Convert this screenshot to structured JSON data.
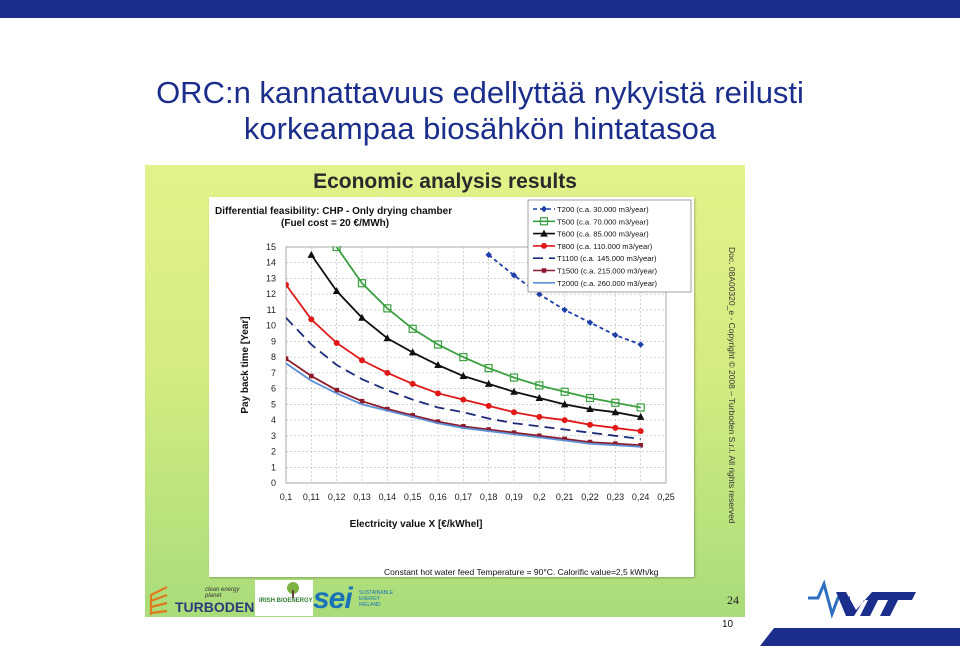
{
  "slide": {
    "title_line1": "ORC:n kannattavuus edellyttää nykyistä reilusti",
    "title_line2": "korkeampaa biosähkön hintatasoa",
    "page_number": "10",
    "brand_color": "#1b2e8c"
  },
  "figure": {
    "heading": "Economic analysis results",
    "side_text": "Doc. 08A00320_e - Copyright © 2008 – Turboden S.r.l. All rights reserved",
    "footnote": "Constant hot water feed Temperature = 90°C. Calorific value=2,5 kWh/kg",
    "page": "24",
    "logos": {
      "turboden": "TURBODEN",
      "turboden_tagline": "clean energy planet",
      "irish": "IRISH BIOENERGY",
      "sei": "sei",
      "sei_tagline": "SUSTAINABLE ENERGY IRELAND"
    }
  },
  "chart_data": {
    "type": "line",
    "title": "Differential feasibility: CHP - Only drying chamber",
    "subtitle": "(Fuel cost = 20 €/MWh)",
    "xlabel": "Electricity value X [€/kWhel]",
    "ylabel": "Pay back time [Year]",
    "xlim": [
      0.1,
      0.25
    ],
    "ylim": [
      0,
      15
    ],
    "xticks": [
      "0,1",
      "0,11",
      "0,12",
      "0,13",
      "0,14",
      "0,15",
      "0,16",
      "0,17",
      "0,18",
      "0,19",
      "0,2",
      "0,21",
      "0,22",
      "0,23",
      "0,24",
      "0,25"
    ],
    "yticks": [
      "0",
      "1",
      "2",
      "3",
      "4",
      "5",
      "6",
      "7",
      "8",
      "9",
      "10",
      "11",
      "12",
      "13",
      "14",
      "15"
    ],
    "grid": true,
    "legend": "top-right",
    "series": [
      {
        "name": "T200 (c.a. 30.000 m3/year)",
        "color": "#1f3fa8",
        "dash": "4,3",
        "marker": "diamond",
        "x": [
          0.18,
          0.19,
          0.2,
          0.21,
          0.22,
          0.23,
          0.24
        ],
        "values": [
          14.5,
          13.2,
          12.0,
          11.0,
          10.2,
          9.4,
          8.8
        ]
      },
      {
        "name": "T500 (c.a. 70.000 m3/year)",
        "color": "#3aa040",
        "dash": "",
        "marker": "square-open",
        "x": [
          0.12,
          0.13,
          0.14,
          0.15,
          0.16,
          0.17,
          0.18,
          0.19,
          0.2,
          0.21,
          0.22,
          0.23,
          0.24
        ],
        "values": [
          15.0,
          12.7,
          11.1,
          9.8,
          8.8,
          8.0,
          7.3,
          6.7,
          6.2,
          5.8,
          5.4,
          5.1,
          4.8
        ]
      },
      {
        "name": "T600 (c.a. 85.000 m3/year)",
        "color": "#111111",
        "dash": "",
        "marker": "triangle",
        "x": [
          0.11,
          0.12,
          0.13,
          0.14,
          0.15,
          0.16,
          0.17,
          0.18,
          0.19,
          0.2,
          0.21,
          0.22,
          0.23,
          0.24
        ],
        "values": [
          14.5,
          12.2,
          10.5,
          9.2,
          8.3,
          7.5,
          6.8,
          6.3,
          5.8,
          5.4,
          5.0,
          4.7,
          4.5,
          4.2
        ]
      },
      {
        "name": "T800 (c.a. 110.000 m3/year)",
        "color": "#e01818",
        "dash": "",
        "marker": "circle",
        "x": [
          0.1,
          0.11,
          0.12,
          0.13,
          0.14,
          0.15,
          0.16,
          0.17,
          0.18,
          0.19,
          0.2,
          0.21,
          0.22,
          0.23,
          0.24
        ],
        "values": [
          12.6,
          10.4,
          8.9,
          7.8,
          7.0,
          6.3,
          5.7,
          5.3,
          4.9,
          4.5,
          4.2,
          4.0,
          3.7,
          3.5,
          3.3
        ]
      },
      {
        "name": "T1100 (c.a. 145.000 m3/year)",
        "color": "#1c2b7a",
        "dash": "10,6",
        "marker": "none",
        "x": [
          0.1,
          0.11,
          0.12,
          0.13,
          0.14,
          0.15,
          0.16,
          0.17,
          0.18,
          0.19,
          0.2,
          0.21,
          0.22,
          0.23,
          0.24
        ],
        "values": [
          10.5,
          8.8,
          7.5,
          6.6,
          5.9,
          5.3,
          4.8,
          4.5,
          4.1,
          3.8,
          3.6,
          3.4,
          3.2,
          3.0,
          2.8
        ]
      },
      {
        "name": "T1500 (c.a. 215.000 m3/year)",
        "color": "#8b1a2a",
        "dash": "",
        "marker": "square",
        "x": [
          0.1,
          0.11,
          0.12,
          0.13,
          0.14,
          0.15,
          0.16,
          0.17,
          0.18,
          0.19,
          0.2,
          0.21,
          0.22,
          0.23,
          0.24
        ],
        "values": [
          7.9,
          6.8,
          5.9,
          5.2,
          4.7,
          4.3,
          3.9,
          3.6,
          3.4,
          3.2,
          3.0,
          2.8,
          2.6,
          2.5,
          2.4
        ]
      },
      {
        "name": "T2000 (c.a. 260.000 m3/year)",
        "color": "#5c8fd6",
        "dash": "",
        "marker": "none",
        "x": [
          0.1,
          0.11,
          0.12,
          0.13,
          0.14,
          0.15,
          0.16,
          0.17,
          0.18,
          0.19,
          0.2,
          0.21,
          0.22,
          0.23,
          0.24
        ],
        "values": [
          7.6,
          6.5,
          5.7,
          5.0,
          4.6,
          4.2,
          3.8,
          3.5,
          3.3,
          3.1,
          2.9,
          2.7,
          2.5,
          2.4,
          2.3
        ]
      }
    ]
  }
}
